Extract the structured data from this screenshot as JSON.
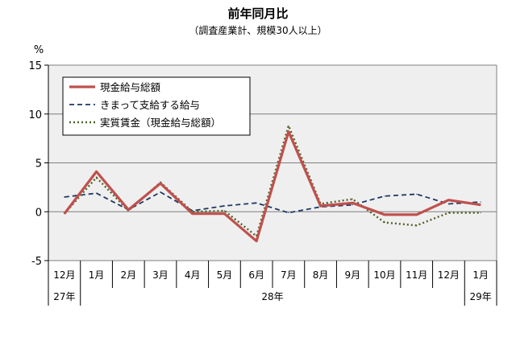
{
  "chart_data": {
    "type": "line",
    "title": "前年同月比",
    "subtitle": "（調査産業計、規模30人以上）",
    "ylabel": "%",
    "ylim": [
      -5,
      15
    ],
    "yticks": [
      "15",
      "10",
      "5",
      "0",
      "-5"
    ],
    "categories": [
      "12月",
      "1月",
      "2月",
      "3月",
      "4月",
      "5月",
      "6月",
      "7月",
      "8月",
      "9月",
      "10月",
      "11月",
      "12月",
      "1月"
    ],
    "year_labels": [
      "27年",
      "28年",
      "29年"
    ],
    "legend_position": "top-left",
    "grid": true,
    "series": [
      {
        "name": "現金給与総額",
        "style": "solid",
        "color": "#c0504d",
        "values": [
          -0.2,
          4.1,
          0.2,
          2.9,
          -0.2,
          -0.2,
          -3.0,
          8.2,
          0.6,
          0.9,
          -0.3,
          -0.3,
          1.2,
          0.7
        ]
      },
      {
        "name": "きまって支給する給与",
        "style": "dashed",
        "color": "#1f3864",
        "values": [
          1.5,
          1.9,
          0.2,
          2.0,
          0.1,
          0.6,
          0.9,
          -0.1,
          0.5,
          0.7,
          1.6,
          1.8,
          0.8,
          1.0
        ]
      },
      {
        "name": "実質賃金（現金給与総額）",
        "style": "dotted",
        "color": "#4f6228",
        "values": [
          -0.2,
          3.5,
          0.1,
          3.0,
          0.0,
          0.1,
          -2.5,
          8.8,
          0.8,
          1.3,
          -1.1,
          -1.4,
          -0.1,
          -0.1
        ]
      }
    ]
  }
}
